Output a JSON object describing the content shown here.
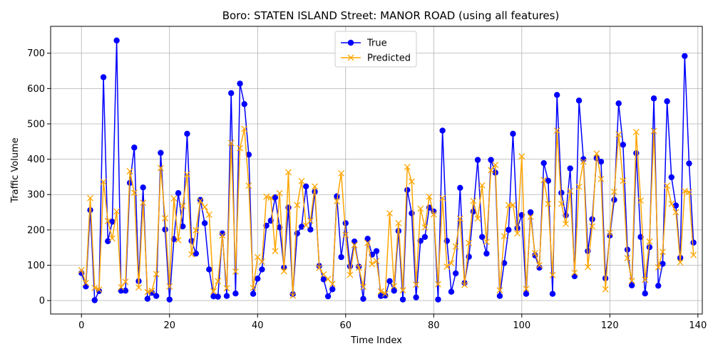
{
  "chart_data": {
    "type": "line",
    "title": "Boro: STATEN ISLAND Street: MANOR ROAD (using all features)",
    "xlabel": "Time Index",
    "ylabel": "Traffic Volume",
    "xlim": [
      -7,
      141
    ],
    "ylim": [
      -38,
      776
    ],
    "xticks": [
      0,
      20,
      40,
      60,
      80,
      100,
      120,
      140
    ],
    "yticks": [
      0,
      100,
      200,
      300,
      400,
      500,
      600,
      700
    ],
    "grid": true,
    "legend_position": "top-center",
    "series": [
      {
        "name": "True",
        "color": "#0000ff",
        "marker": "circle",
        "values": [
          78,
          40,
          256,
          1,
          27,
          632,
          168,
          223,
          736,
          28,
          28,
          333,
          433,
          55,
          320,
          5,
          22,
          13,
          418,
          201,
          3,
          174,
          304,
          210,
          472,
          169,
          133,
          285,
          219,
          88,
          12,
          11,
          190,
          13,
          587,
          20,
          614,
          556,
          413,
          19,
          62,
          88,
          212,
          226,
          292,
          207,
          93,
          263,
          18,
          190,
          209,
          323,
          201,
          308,
          98,
          60,
          12,
          32,
          295,
          123,
          219,
          97,
          167,
          96,
          5,
          175,
          130,
          140,
          13,
          14,
          55,
          28,
          197,
          3,
          313,
          247,
          9,
          169,
          180,
          263,
          252,
          3,
          481,
          169,
          25,
          77,
          319,
          50,
          124,
          252,
          398,
          180,
          133,
          398,
          362,
          13,
          106,
          200,
          472,
          205,
          242,
          19,
          250,
          128,
          93,
          389,
          339,
          19,
          582,
          305,
          241,
          374,
          69,
          566,
          400,
          140,
          230,
          403,
          393,
          63,
          184,
          285,
          558,
          441,
          144,
          43,
          417,
          180,
          20,
          151,
          572,
          42,
          104,
          564,
          349,
          269,
          121,
          692,
          388,
          164
        ]
      },
      {
        "name": "Predicted",
        "color": "#ffa500",
        "marker": "x",
        "values": [
          86,
          50,
          290,
          36,
          31,
          336,
          225,
          176,
          252,
          38,
          53,
          366,
          305,
          37,
          277,
          24,
          28,
          75,
          375,
          233,
          40,
          289,
          171,
          268,
          357,
          131,
          199,
          282,
          265,
          243,
          26,
          55,
          184,
          35,
          446,
          82,
          431,
          486,
          325,
          36,
          123,
          110,
          294,
          291,
          140,
          304,
          83,
          363,
          14,
          270,
          338,
          213,
          226,
          323,
          93,
          74,
          61,
          47,
          281,
          360,
          186,
          73,
          157,
          93,
          39,
          163,
          103,
          112,
          26,
          19,
          247,
          41,
          219,
          29,
          378,
          337,
          45,
          260,
          207,
          294,
          244,
          46,
          290,
          96,
          106,
          153,
          232,
          44,
          163,
          282,
          232,
          326,
          166,
          369,
          384,
          29,
          182,
          270,
          271,
          190,
          408,
          33,
          237,
          134,
          100,
          341,
          274,
          72,
          481,
          274,
          217,
          310,
          79,
          322,
          393,
          95,
          210,
          416,
          344,
          32,
          192,
          308,
          470,
          339,
          120,
          56,
          477,
          283,
          59,
          167,
          480,
          94,
          138,
          325,
          274,
          250,
          108,
          310,
          307,
          129
        ]
      }
    ]
  }
}
